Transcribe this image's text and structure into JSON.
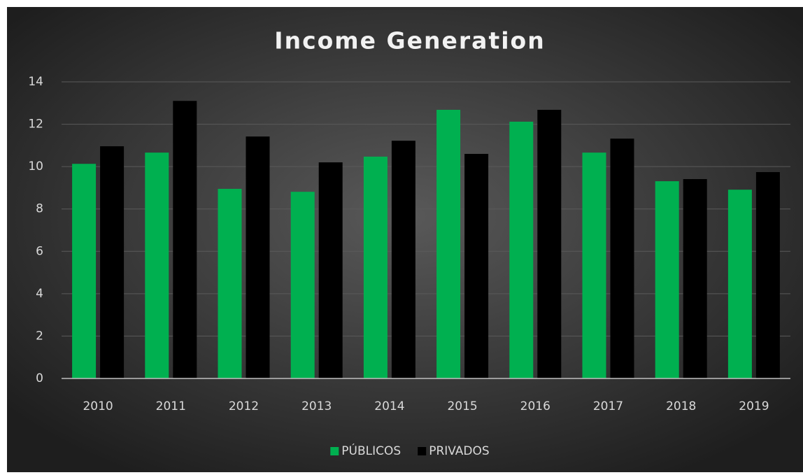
{
  "chart_data": {
    "type": "bar",
    "title": "Income Generation",
    "categories": [
      "2010",
      "2011",
      "2012",
      "2013",
      "2014",
      "2015",
      "2016",
      "2017",
      "2018",
      "2019"
    ],
    "series": [
      {
        "name": "PÚBLICOS",
        "color": "#00b050",
        "values": [
          10.13,
          10.66,
          8.95,
          8.81,
          10.47,
          12.68,
          12.12,
          10.66,
          9.31,
          8.91
        ]
      },
      {
        "name": "PRIVADOS",
        "color": "#000000",
        "values": [
          10.96,
          13.1,
          11.42,
          10.2,
          11.22,
          10.6,
          12.68,
          11.32,
          9.41,
          9.74
        ]
      }
    ],
    "ylim": [
      0,
      14
    ],
    "yticks": [
      0,
      2,
      4,
      6,
      8,
      10,
      12,
      14
    ],
    "grid": true,
    "legend": "bottom"
  }
}
